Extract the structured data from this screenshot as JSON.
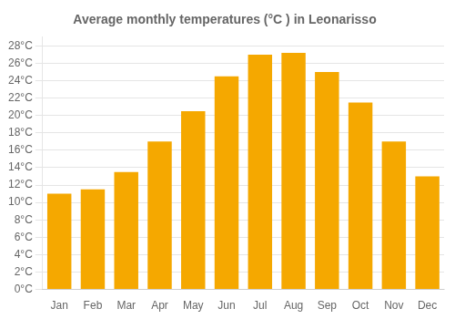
{
  "chart_data": {
    "type": "bar",
    "title": "Average monthly temperatures (°C ) in Leonarisso",
    "categories": [
      "Jan",
      "Feb",
      "Mar",
      "Apr",
      "May",
      "Jun",
      "Jul",
      "Aug",
      "Sep",
      "Oct",
      "Nov",
      "Dec"
    ],
    "values": [
      11,
      11.5,
      13.5,
      17,
      20.5,
      24.5,
      27,
      27.2,
      25,
      21.5,
      17,
      13
    ],
    "color": "#F5A800",
    "ylim": [
      0,
      29
    ],
    "yticks": [
      {
        "value": 0,
        "label": "0°C"
      },
      {
        "value": 2,
        "label": "2°C"
      },
      {
        "value": 4,
        "label": "4°C"
      },
      {
        "value": 6,
        "label": "6°C"
      },
      {
        "value": 8,
        "label": "8°C"
      },
      {
        "value": 10,
        "label": "10°C"
      },
      {
        "value": 12,
        "label": "12°C"
      },
      {
        "value": 14,
        "label": "14°C"
      },
      {
        "value": 16,
        "label": "16°C"
      },
      {
        "value": 18,
        "label": "18°C"
      },
      {
        "value": 20,
        "label": "20°C"
      },
      {
        "value": 22,
        "label": "22°C"
      },
      {
        "value": 24,
        "label": "24°C"
      },
      {
        "value": 26,
        "label": "26°C"
      },
      {
        "value": 28,
        "label": "28°C"
      }
    ],
    "grid": true
  }
}
